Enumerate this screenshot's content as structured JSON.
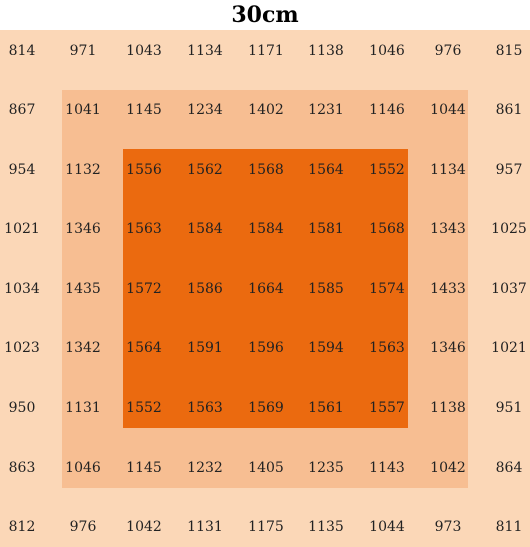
{
  "title": "30cm",
  "zone_colors": {
    "outer": "#FBD7B7",
    "middle": "#F7BE92",
    "inner": "#EB6A0F"
  },
  "grid": [
    [
      "814",
      "971",
      "1043",
      "1134",
      "1171",
      "1138",
      "1046",
      "976",
      "815"
    ],
    [
      "867",
      "1041",
      "1145",
      "1234",
      "1402",
      "1231",
      "1146",
      "1044",
      "861"
    ],
    [
      "954",
      "1132",
      "1556",
      "1562",
      "1568",
      "1564",
      "1552",
      "1134",
      "957"
    ],
    [
      "1021",
      "1346",
      "1563",
      "1584",
      "1584",
      "1581",
      "1568",
      "1343",
      "1025"
    ],
    [
      "1034",
      "1435",
      "1572",
      "1586",
      "1664",
      "1585",
      "1574",
      "1433",
      "1037"
    ],
    [
      "1023",
      "1342",
      "1564",
      "1591",
      "1596",
      "1594",
      "1563",
      "1346",
      "1021"
    ],
    [
      "950",
      "1131",
      "1552",
      "1563",
      "1569",
      "1561",
      "1557",
      "1138",
      "951"
    ],
    [
      "863",
      "1046",
      "1145",
      "1232",
      "1405",
      "1235",
      "1143",
      "1042",
      "864"
    ],
    [
      "812",
      "976",
      "1042",
      "1131",
      "1175",
      "1135",
      "1044",
      "973",
      "811"
    ]
  ]
}
